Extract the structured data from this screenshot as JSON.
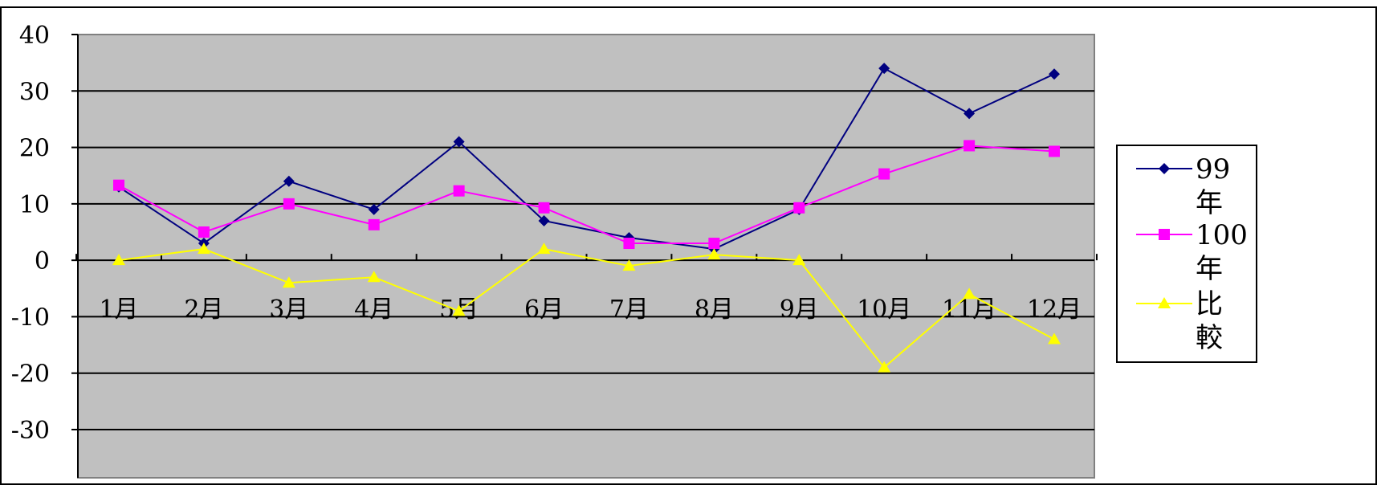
{
  "chart_data": {
    "type": "line",
    "title": "",
    "xlabel": "",
    "ylabel": "",
    "ylim": [
      -30,
      40
    ],
    "yticks": [
      -30,
      -20,
      -10,
      0,
      10,
      20,
      30,
      40
    ],
    "categories": [
      "1月",
      "2月",
      "3月",
      "4月",
      "5月",
      "6月",
      "7月",
      "8月",
      "9月",
      "10月",
      "11月",
      "12月"
    ],
    "series": [
      {
        "name": "99年",
        "values": [
          13,
          3,
          14,
          9,
          21,
          7,
          4,
          2,
          9,
          34,
          26,
          33
        ],
        "color": "#000080",
        "marker": "diamond"
      },
      {
        "name": "100年",
        "values": [
          13.3,
          5,
          10,
          6.3,
          12.3,
          9.3,
          3,
          3,
          9.3,
          15.3,
          20.3,
          19.3
        ],
        "color": "#FF00FF",
        "marker": "square"
      },
      {
        "name": "比較",
        "values": [
          0,
          2,
          -4,
          -3,
          -9,
          2,
          -1,
          1,
          0,
          -19,
          -6,
          -14
        ],
        "color": "#FFFF00",
        "marker": "triangle"
      }
    ],
    "grid": true,
    "plot_background": "#C0C0C0",
    "legend_position": "right"
  }
}
